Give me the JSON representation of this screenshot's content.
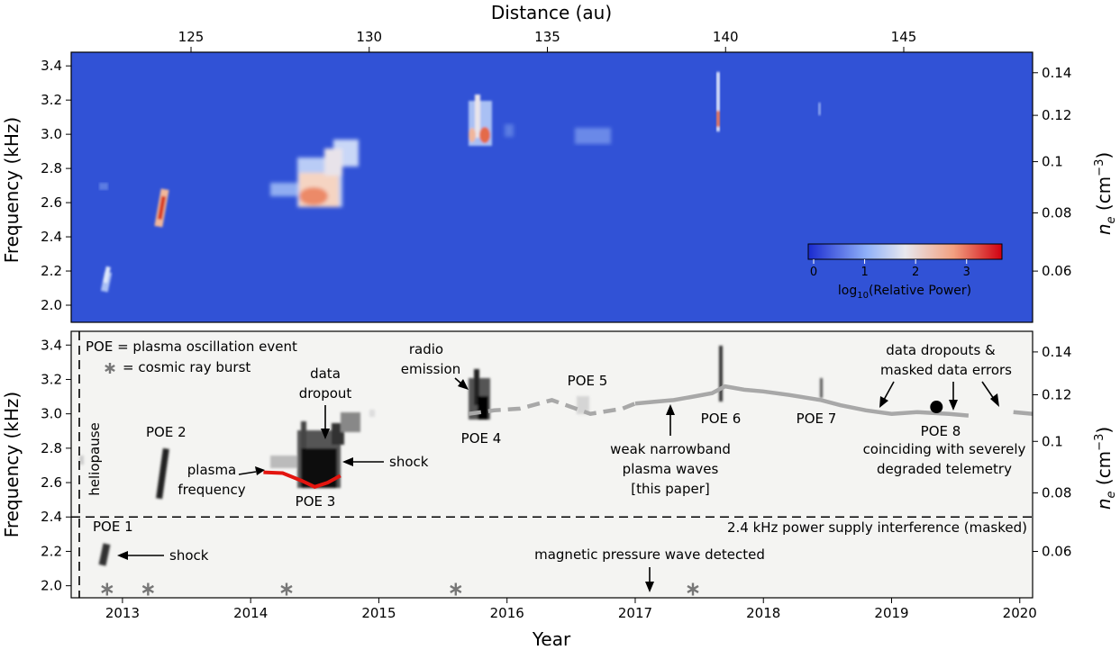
{
  "chart_data": [
    {
      "type": "heatmap",
      "panel": "top",
      "top_axis": {
        "label": "Distance (au)",
        "ticks": [
          125,
          130,
          135,
          140,
          145
        ]
      },
      "ylabel": "Frequency (kHz)",
      "ylim": [
        1.9,
        3.48
      ],
      "yticks": [
        "2.0",
        "2.2",
        "2.4",
        "2.6",
        "2.8",
        "3.0",
        "3.2",
        "3.4"
      ],
      "right_axis": {
        "label": "n_e (cm^-3)",
        "ticks": [
          "0.06",
          "0.08",
          "0.1",
          "0.12",
          "0.14"
        ]
      },
      "colorbar": {
        "label": "log10(Relative Power)",
        "ticks": [
          "0",
          "1",
          "2",
          "3"
        ],
        "range": [
          0,
          3.8
        ]
      },
      "colors": {
        "background": "#3152d6",
        "low": "#3a4cc0",
        "mid": "#dddddd",
        "high": "#b40426"
      }
    },
    {
      "type": "scatter",
      "panel": "bottom",
      "xlabel": "Year",
      "xlim": [
        2012.6,
        2020.1
      ],
      "xticks": [
        "2013",
        "2014",
        "2015",
        "2016",
        "2017",
        "2018",
        "2019",
        "2020"
      ],
      "ylabel": "Frequency (kHz)",
      "ylim": [
        1.93,
        3.48
      ],
      "yticks": [
        "2.0",
        "2.2",
        "2.4",
        "2.6",
        "2.8",
        "3.0",
        "3.2",
        "3.4"
      ],
      "right_axis": {
        "label": "n_e (cm^-3)",
        "ticks": [
          "0.06",
          "0.08",
          "0.1",
          "0.12",
          "0.14"
        ]
      },
      "legend": {
        "line1": "POE = plasma oscillation event",
        "line2": "= cosmic ray burst"
      },
      "heliopause_label": "heliopause",
      "interference_label": "2.4 kHz power supply interference (masked)",
      "interference_freq": 2.4,
      "cosmic_ray_bursts": [
        2012.88,
        2013.2,
        2014.28,
        2015.6,
        2017.45
      ],
      "cosmic_ray_freq": 1.98,
      "poe_8_dot": {
        "x": 2019.35,
        "y": 3.04
      },
      "plasma_frequency_curve": [
        [
          2014.1,
          2.66
        ],
        [
          2014.25,
          2.655
        ],
        [
          2014.4,
          2.61
        ],
        [
          2014.5,
          2.575
        ],
        [
          2014.6,
          2.6
        ],
        [
          2014.7,
          2.64
        ]
      ],
      "narrowband_trace": [
        [
          2015.7,
          3.0
        ],
        [
          2015.9,
          3.02
        ],
        [
          2016.1,
          3.03
        ],
        [
          2016.25,
          3.06
        ],
        [
          2016.35,
          3.08
        ],
        [
          2016.5,
          3.04
        ],
        [
          2016.65,
          3.0
        ],
        [
          2016.9,
          3.03
        ],
        [
          2017.0,
          3.06
        ],
        [
          2017.15,
          3.07
        ],
        [
          2017.3,
          3.08
        ],
        [
          2017.45,
          3.1
        ],
        [
          2017.6,
          3.12
        ],
        [
          2017.7,
          3.16
        ],
        [
          2017.85,
          3.14
        ],
        [
          2018.0,
          3.13
        ],
        [
          2018.2,
          3.11
        ],
        [
          2018.45,
          3.08
        ],
        [
          2018.6,
          3.05
        ],
        [
          2018.8,
          3.02
        ],
        [
          2019.0,
          3.0
        ],
        [
          2019.2,
          3.01
        ],
        [
          2019.45,
          3.0
        ],
        [
          2019.6,
          2.99
        ],
        [
          2019.8,
          3.0
        ],
        [
          2019.95,
          3.01
        ],
        [
          2020.1,
          3.0
        ]
      ],
      "annotations": [
        {
          "text": "POE 1"
        },
        {
          "text": "shock"
        },
        {
          "text": "POE 2"
        },
        {
          "text": "plasma"
        },
        {
          "text": "frequency"
        },
        {
          "text": "data"
        },
        {
          "text": "dropout"
        },
        {
          "text": "shock"
        },
        {
          "text": "POE 3"
        },
        {
          "text": "radio"
        },
        {
          "text": "emission"
        },
        {
          "text": "POE 4"
        },
        {
          "text": "POE 5"
        },
        {
          "text": "weak narrowband"
        },
        {
          "text": "plasma waves"
        },
        {
          "text": "[this paper]"
        },
        {
          "text": "POE 6"
        },
        {
          "text": "POE 7"
        },
        {
          "text": "data dropouts &"
        },
        {
          "text": "masked data errors"
        },
        {
          "text": "POE 8"
        },
        {
          "text": "coinciding with severely"
        },
        {
          "text": "degraded telemetry"
        },
        {
          "text": "magnetic pressure wave detected"
        }
      ]
    }
  ]
}
